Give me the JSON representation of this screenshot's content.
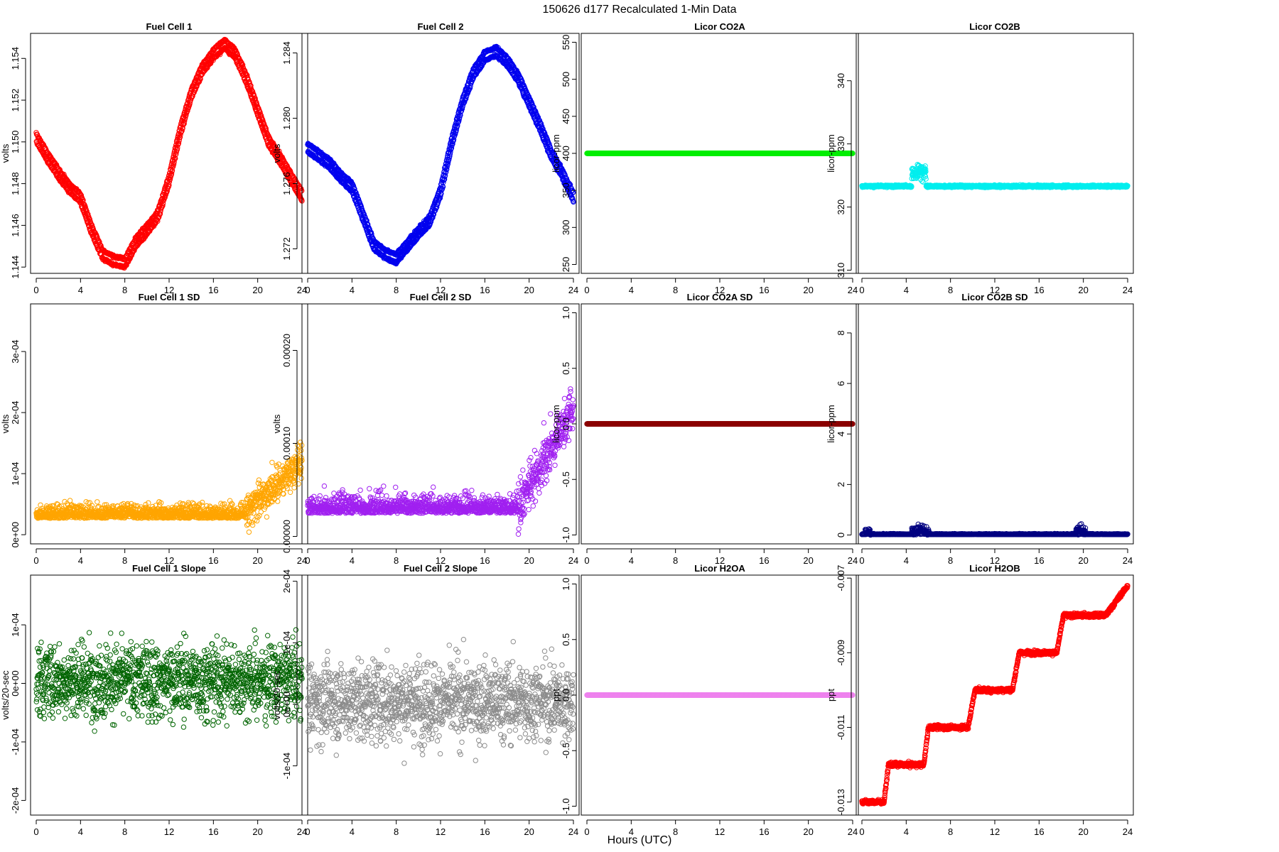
{
  "figure_title": "150626   d177   Recalculated 1-Min Data",
  "xlabel": "Hours (UTC)",
  "chart_data": [
    {
      "id": "fc1",
      "type": "scatter",
      "title": "Fuel Cell 1",
      "ylabel": "volts",
      "color": "#ff0000",
      "xlim": [
        0,
        24
      ],
      "ylim": [
        1.1437,
        1.1552
      ],
      "xticks": [
        "0",
        "4",
        "8",
        "12",
        "16",
        "20",
        "24"
      ],
      "yticks": [
        "1.144",
        "1.146",
        "1.148",
        "1.150",
        "1.152",
        "1.154"
      ],
      "yvals": [
        1.144,
        1.146,
        1.148,
        1.15,
        1.152,
        1.154
      ],
      "pattern": "curve",
      "anchors": [
        [
          0,
          1.1502
        ],
        [
          1,
          1.1493
        ],
        [
          2,
          1.1485
        ],
        [
          3,
          1.1478
        ],
        [
          4,
          1.1473
        ],
        [
          5,
          1.1458
        ],
        [
          6,
          1.1446
        ],
        [
          7,
          1.1443
        ],
        [
          8,
          1.1442
        ],
        [
          9,
          1.1452
        ],
        [
          10,
          1.1458
        ],
        [
          11,
          1.1465
        ],
        [
          12,
          1.1482
        ],
        [
          13,
          1.1505
        ],
        [
          14,
          1.1523
        ],
        [
          15,
          1.1535
        ],
        [
          16,
          1.1542
        ],
        [
          17,
          1.1547
        ],
        [
          18,
          1.1542
        ],
        [
          19,
          1.153
        ],
        [
          20,
          1.1515
        ],
        [
          21,
          1.15
        ],
        [
          22,
          1.1492
        ],
        [
          23,
          1.1483
        ],
        [
          24,
          1.1474
        ]
      ],
      "band": 0.0004,
      "n": 1440
    },
    {
      "id": "fc2",
      "type": "scatter",
      "title": "Fuel Cell 2",
      "ylabel": "volts",
      "color": "#0000ee",
      "xlim": [
        0,
        24
      ],
      "ylim": [
        1.2705,
        1.2852
      ],
      "xticks": [
        "0",
        "4",
        "8",
        "12",
        "16",
        "20",
        "24"
      ],
      "yticks": [
        "1.272",
        "1.276",
        "1.280",
        "1.284"
      ],
      "yvals": [
        1.272,
        1.276,
        1.28,
        1.284
      ],
      "pattern": "curve",
      "anchors": [
        [
          0,
          1.2782
        ],
        [
          1,
          1.2777
        ],
        [
          2,
          1.2772
        ],
        [
          3,
          1.2764
        ],
        [
          4,
          1.2758
        ],
        [
          5,
          1.274
        ],
        [
          6,
          1.2722
        ],
        [
          7,
          1.2717
        ],
        [
          8,
          1.2714
        ],
        [
          9,
          1.2722
        ],
        [
          10,
          1.273
        ],
        [
          11,
          1.2737
        ],
        [
          12,
          1.2755
        ],
        [
          13,
          1.2785
        ],
        [
          14,
          1.281
        ],
        [
          15,
          1.2828
        ],
        [
          16,
          1.2838
        ],
        [
          17,
          1.2841
        ],
        [
          18,
          1.2835
        ],
        [
          19,
          1.2825
        ],
        [
          20,
          1.281
        ],
        [
          21,
          1.2795
        ],
        [
          22,
          1.2778
        ],
        [
          23,
          1.2766
        ],
        [
          24,
          1.2752
        ]
      ],
      "band": 0.0005,
      "n": 1440
    },
    {
      "id": "co2a",
      "type": "scatter",
      "title": "Licor CO2A",
      "ylabel": "licor-ppm",
      "color": "#00ee00",
      "xlim": [
        0,
        24
      ],
      "ylim": [
        238,
        562
      ],
      "xticks": [
        "0",
        "4",
        "8",
        "12",
        "16",
        "20",
        "24"
      ],
      "yticks": [
        "250",
        "300",
        "350",
        "400",
        "450",
        "500",
        "550"
      ],
      "yvals": [
        250,
        300,
        350,
        400,
        450,
        500,
        550
      ],
      "pattern": "constant",
      "value": 400,
      "n": 1440
    },
    {
      "id": "co2b",
      "type": "scatter",
      "title": "Licor CO2B",
      "ylabel": "licor-ppm",
      "color": "#00eeee",
      "xlim": [
        0,
        24
      ],
      "ylim": [
        309.5,
        347.5
      ],
      "xticks": [
        "0",
        "4",
        "8",
        "12",
        "16",
        "20",
        "24"
      ],
      "yticks": [
        "310",
        "320",
        "330",
        "340"
      ],
      "yvals": [
        310,
        320,
        330,
        340
      ],
      "pattern": "co2b",
      "value": 323.3,
      "n": 1440
    },
    {
      "id": "fc1sd",
      "type": "scatter",
      "title": "Fuel Cell 1 SD",
      "ylabel": "volts",
      "color": "#ffa500",
      "xlim": [
        0,
        24
      ],
      "ylim": [
        -1.5e-05,
        0.000378
      ],
      "xticks": [
        "0",
        "4",
        "8",
        "12",
        "16",
        "20",
        "24"
      ],
      "yticks": [
        "0e+00",
        "1e-04",
        "2e-04",
        "3e-04"
      ],
      "yvals": [
        0,
        0.0001,
        0.0002,
        0.0003
      ],
      "pattern": "sd",
      "base": 2.7e-05,
      "jit": 1.5e-05,
      "rise": 8.5e-05,
      "riseStart": 19,
      "n": 1440
    },
    {
      "id": "fc2sd",
      "type": "scatter",
      "title": "Fuel Cell 2 SD",
      "ylabel": "volts",
      "color": "#a020f0",
      "xlim": [
        0,
        24
      ],
      "ylim": [
        -8e-06,
        0.00025
      ],
      "xticks": [
        "0",
        "4",
        "8",
        "12",
        "16",
        "20",
        "24"
      ],
      "yticks": [
        "0.00000",
        "0.00010",
        "0.00020"
      ],
      "yvals": [
        0,
        0.0001,
        0.0002
      ],
      "pattern": "sd",
      "base": 2.5e-05,
      "jit": 1.3e-05,
      "rise": 0.000105,
      "riseStart": 19,
      "n": 1440
    },
    {
      "id": "co2asd",
      "type": "scatter",
      "title": "Licor CO2A SD",
      "ylabel": "licor-ppm",
      "color": "#8b0000",
      "xlim": [
        0,
        24
      ],
      "ylim": [
        -1.08,
        1.08
      ],
      "xticks": [
        "0",
        "4",
        "8",
        "12",
        "16",
        "20",
        "24"
      ],
      "yticks": [
        "-1.0",
        "-0.5",
        "0.0",
        "0.5",
        "1.0"
      ],
      "yvals": [
        -1,
        -0.5,
        0,
        0.5,
        1
      ],
      "pattern": "constant",
      "value": 0,
      "n": 1440
    },
    {
      "id": "co2bsd",
      "type": "scatter",
      "title": "Licor CO2B SD",
      "ylabel": "licor-ppm",
      "color": "#000080",
      "xlim": [
        0,
        24
      ],
      "ylim": [
        -0.35,
        9.15
      ],
      "xticks": [
        "0",
        "4",
        "8",
        "12",
        "16",
        "20",
        "24"
      ],
      "yticks": [
        "0",
        "2",
        "4",
        "6",
        "8"
      ],
      "yvals": [
        0,
        2,
        4,
        6,
        8
      ],
      "pattern": "co2bsd",
      "value": 0.02,
      "n": 1440
    },
    {
      "id": "fc1slope",
      "type": "scatter",
      "title": "Fuel Cell 1 Slope",
      "ylabel": "volts/20-sec",
      "color": "#006400",
      "xlim": [
        0,
        24
      ],
      "ylim": [
        -0.000225,
        0.000185
      ],
      "xticks": [
        "0",
        "4",
        "8",
        "12",
        "16",
        "20",
        "24"
      ],
      "yticks": [
        "-2e-04",
        "-1e-04",
        "0e+00",
        "1e-04"
      ],
      "yvals": [
        -0.0002,
        -0.0001,
        0,
        0.0001
      ],
      "pattern": "noise",
      "value": 5e-06,
      "jit": 4.5e-05,
      "n": 1440
    },
    {
      "id": "fc2slope",
      "type": "scatter",
      "title": "Fuel Cell 2 Slope",
      "ylabel": "volts/20-sec",
      "color": "#8c8c8c",
      "xlim": [
        0,
        24
      ],
      "ylim": [
        -0.00018,
        0.00021
      ],
      "xticks": [
        "0",
        "4",
        "8",
        "12",
        "16",
        "20",
        "24"
      ],
      "yticks": [
        "-1e-04",
        "0e+00",
        "1e-04",
        "2e-04"
      ],
      "yvals": [
        -0.0001,
        0,
        0.0001,
        0.0002
      ],
      "pattern": "noise",
      "value": 5e-06,
      "jit": 4.5e-05,
      "n": 1440
    },
    {
      "id": "h2oa",
      "type": "scatter",
      "title": "Licor H2OA",
      "ylabel": "ppt",
      "color": "#ee82ee",
      "xlim": [
        0,
        24
      ],
      "ylim": [
        -1.08,
        1.08
      ],
      "xticks": [
        "0",
        "4",
        "8",
        "12",
        "16",
        "20",
        "24"
      ],
      "yticks": [
        "-1.0",
        "-0.5",
        "0.0",
        "0.5",
        "1.0"
      ],
      "yvals": [
        -1,
        -0.5,
        0,
        0.5,
        1
      ],
      "pattern": "constant",
      "value": 0,
      "n": 1440
    },
    {
      "id": "h2ob",
      "type": "scatter",
      "title": "Licor H2OB",
      "ylabel": "ppt",
      "color": "#ff0000",
      "xlim": [
        0,
        24
      ],
      "ylim": [
        -0.01335,
        -0.00692
      ],
      "xticks": [
        "0",
        "4",
        "8",
        "12",
        "16",
        "20",
        "24"
      ],
      "yticks": [
        "-0.013",
        "-0.011",
        "-0.009",
        "-0.007"
      ],
      "yvals": [
        -0.013,
        -0.011,
        -0.009,
        -0.007
      ],
      "pattern": "steps",
      "steps": [
        [
          0,
          2.0,
          -0.013
        ],
        [
          2.4,
          5.6,
          -0.012
        ],
        [
          6.0,
          9.6,
          -0.011
        ],
        [
          10.2,
          13.6,
          -0.01
        ],
        [
          14.2,
          17.6,
          -0.009
        ],
        [
          18.2,
          22.0,
          -0.008
        ]
      ],
      "n": 1440
    }
  ]
}
